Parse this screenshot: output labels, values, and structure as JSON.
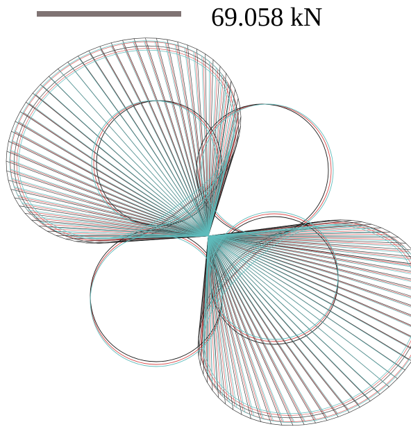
{
  "scale": {
    "label": "69.058 kN"
  },
  "colors": {
    "background": "#ffffff",
    "scale_bar": "#7f7373",
    "series_a": "#d94848",
    "series_b": "#1a1a1a",
    "series_c": "#5fbcbc"
  },
  "diagram": {
    "type": "polar force diagram",
    "series_colors": [
      "#d94848",
      "#1a1a1a",
      "#5fbcbc"
    ]
  }
}
